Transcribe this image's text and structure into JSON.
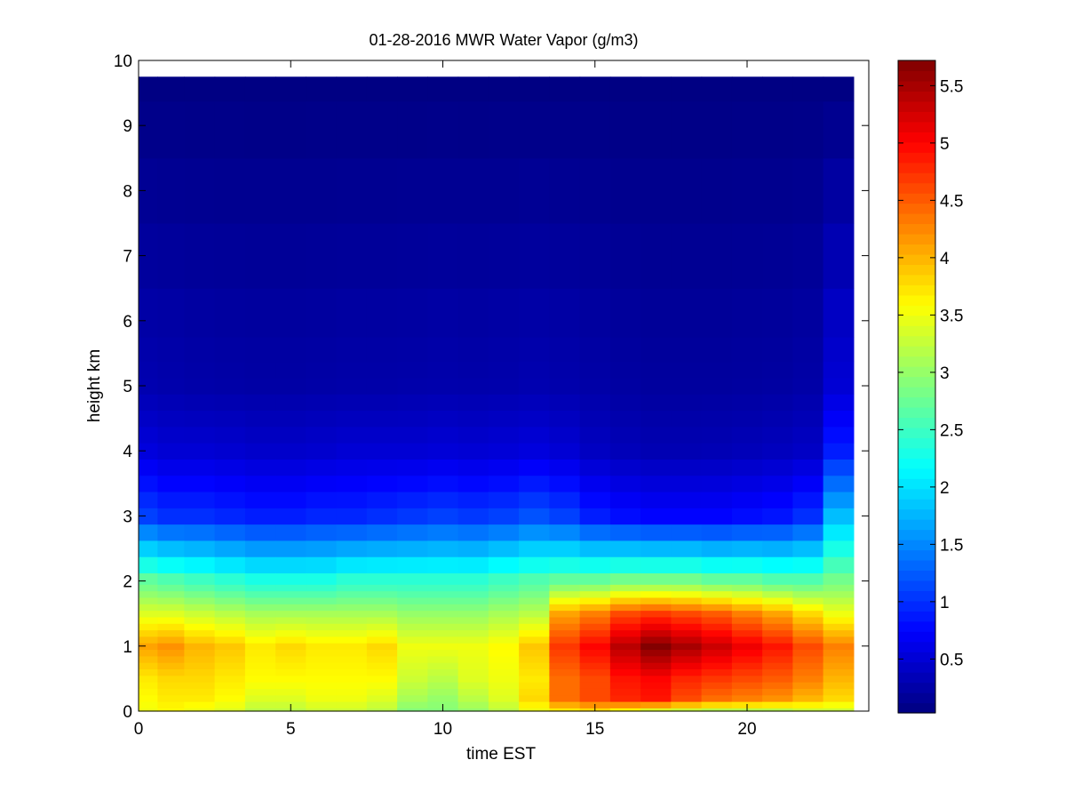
{
  "chart_data": {
    "type": "heatmap",
    "title": "01-28-2016 MWR Water Vapor (g/m3)",
    "xlabel": "time EST",
    "ylabel": "height km",
    "xlim": [
      0,
      24
    ],
    "ylim": [
      0,
      10
    ],
    "x_ticks": [
      0,
      5,
      10,
      15,
      20
    ],
    "y_ticks": [
      0,
      1,
      2,
      3,
      4,
      5,
      6,
      7,
      8,
      9,
      10
    ],
    "colorbar": {
      "range": [
        0.03,
        5.72
      ],
      "colormap": "jet",
      "ticks": [
        0.5,
        1,
        1.5,
        2,
        2.5,
        3,
        3.5,
        4,
        4.5,
        5,
        5.5
      ],
      "tick_labels": [
        "0.5",
        "1",
        "1.5",
        "2",
        "2.5",
        "3",
        "3.5",
        "4",
        "4.5",
        "5",
        "5.5"
      ]
    },
    "time_EST": [
      0.25,
      1.0,
      2.0,
      3.0,
      4.0,
      5.0,
      6.0,
      7.0,
      8.0,
      9.0,
      10.0,
      11.0,
      12.0,
      13.0,
      14.0,
      15.0,
      16.0,
      17.0,
      18.0,
      19.0,
      20.0,
      21.0,
      22.0,
      23.0
    ],
    "height_km": [
      0.0,
      0.1,
      0.2,
      0.3,
      0.4,
      0.5,
      0.6,
      0.7,
      0.8,
      0.9,
      1.0,
      1.1,
      1.2,
      1.3,
      1.4,
      1.5,
      1.6,
      1.7,
      1.8,
      1.9,
      2.0,
      2.25,
      2.5,
      2.75,
      3.0,
      3.25,
      3.5,
      3.75,
      4.0,
      4.25,
      4.5,
      4.75,
      5.0,
      5.25,
      5.5,
      6.0,
      7.0,
      8.0,
      9.0,
      9.75
    ],
    "surface_profile": {
      "note_levels_km": [
        0.0,
        0.2,
        0.5,
        1.0,
        1.5,
        2.0,
        3.0,
        4.0,
        5.0,
        9.75
      ],
      "profiles_by_time": [
        [
          3.5,
          3.6,
          3.7,
          4.1,
          3.4,
          2.7,
          1.1,
          0.55,
          0.3,
          0.05
        ],
        [
          3.6,
          3.7,
          3.8,
          4.2,
          3.4,
          2.6,
          1.0,
          0.5,
          0.28,
          0.05
        ],
        [
          3.5,
          3.7,
          3.8,
          4.0,
          3.3,
          2.5,
          1.0,
          0.5,
          0.26,
          0.05
        ],
        [
          3.4,
          3.6,
          3.7,
          3.9,
          3.2,
          2.4,
          0.95,
          0.48,
          0.25,
          0.05
        ],
        [
          3.2,
          3.4,
          3.6,
          3.7,
          3.1,
          2.3,
          0.9,
          0.45,
          0.24,
          0.05
        ],
        [
          3.2,
          3.4,
          3.6,
          3.8,
          3.1,
          2.3,
          0.9,
          0.45,
          0.24,
          0.05
        ],
        [
          3.3,
          3.5,
          3.6,
          3.7,
          3.1,
          2.3,
          0.95,
          0.47,
          0.25,
          0.05
        ],
        [
          3.3,
          3.5,
          3.6,
          3.7,
          3.1,
          2.4,
          0.95,
          0.5,
          0.26,
          0.05
        ],
        [
          3.2,
          3.4,
          3.6,
          3.8,
          3.1,
          2.4,
          1.0,
          0.5,
          0.26,
          0.05
        ],
        [
          2.9,
          3.1,
          3.3,
          3.5,
          3.0,
          2.4,
          1.05,
          0.5,
          0.27,
          0.05
        ],
        [
          2.9,
          3.0,
          3.2,
          3.5,
          3.0,
          2.4,
          1.1,
          0.52,
          0.28,
          0.05
        ],
        [
          3.0,
          3.2,
          3.4,
          3.5,
          3.0,
          2.4,
          1.05,
          0.5,
          0.27,
          0.05
        ],
        [
          3.2,
          3.4,
          3.5,
          3.6,
          3.1,
          2.5,
          1.1,
          0.52,
          0.28,
          0.05
        ],
        [
          3.5,
          3.8,
          3.7,
          3.9,
          3.2,
          2.6,
          1.2,
          0.55,
          0.3,
          0.05
        ],
        [
          3.7,
          4.4,
          4.4,
          4.7,
          4.1,
          2.7,
          1.1,
          0.5,
          0.28,
          0.05
        ],
        [
          3.8,
          4.6,
          4.6,
          5.0,
          4.3,
          2.7,
          0.9,
          0.4,
          0.25,
          0.05
        ],
        [
          3.6,
          4.8,
          4.9,
          5.4,
          4.6,
          2.8,
          0.8,
          0.35,
          0.22,
          0.05
        ],
        [
          3.4,
          4.9,
          5.0,
          5.7,
          4.7,
          2.8,
          0.75,
          0.32,
          0.2,
          0.05
        ],
        [
          3.3,
          4.6,
          4.8,
          5.5,
          4.6,
          2.8,
          0.75,
          0.32,
          0.2,
          0.05
        ],
        [
          3.2,
          4.4,
          4.7,
          5.3,
          4.5,
          2.7,
          0.75,
          0.33,
          0.2,
          0.05
        ],
        [
          3.2,
          4.3,
          4.6,
          5.1,
          4.3,
          2.7,
          0.8,
          0.35,
          0.21,
          0.05
        ],
        [
          3.2,
          4.2,
          4.5,
          4.9,
          4.1,
          2.6,
          0.85,
          0.38,
          0.22,
          0.05
        ],
        [
          3.3,
          4.0,
          4.3,
          4.6,
          3.8,
          2.6,
          1.0,
          0.42,
          0.25,
          0.05
        ],
        [
          3.3,
          3.8,
          4.0,
          4.3,
          3.5,
          2.8,
          1.8,
          0.9,
          0.5,
          0.05
        ]
      ]
    }
  }
}
